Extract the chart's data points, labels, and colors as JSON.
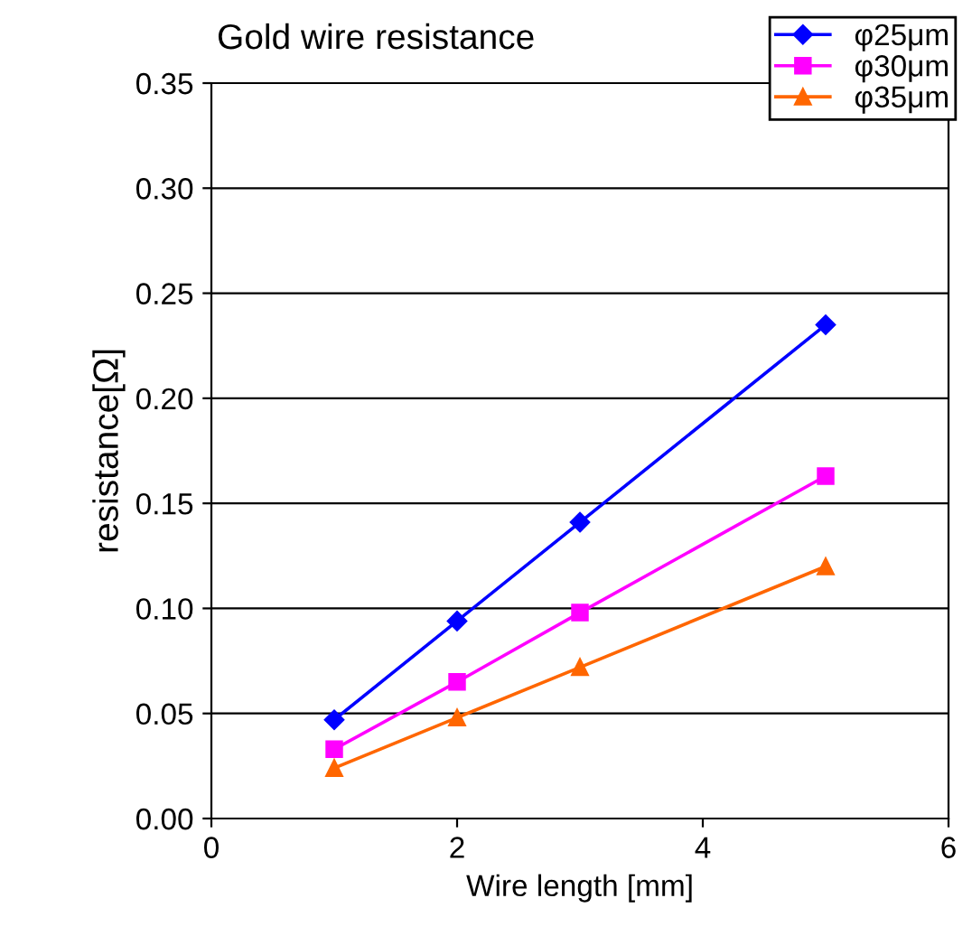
{
  "chart_data": {
    "type": "line",
    "title": "Gold wire resistance",
    "xlabel": "Wire length [mm]",
    "ylabel": "resistance[Ω]",
    "x": [
      1,
      2,
      3,
      5
    ],
    "series": [
      {
        "name": "φ25μm",
        "color": "#0000ff",
        "marker": "diamond",
        "values": [
          0.047,
          0.094,
          0.141,
          0.235
        ]
      },
      {
        "name": "φ30μm",
        "color": "#ff00ff",
        "marker": "square",
        "values": [
          0.033,
          0.065,
          0.098,
          0.163
        ]
      },
      {
        "name": "φ35μm",
        "color": "#ff6600",
        "marker": "triangle",
        "values": [
          0.024,
          0.048,
          0.072,
          0.12
        ]
      }
    ],
    "xlim": [
      0,
      6
    ],
    "xticks": [
      0,
      2,
      4,
      6
    ],
    "ylim": [
      0,
      0.35
    ],
    "yticks": [
      {
        "value": 0,
        "label": "0.00"
      },
      {
        "value": 0.05,
        "label": "0.05"
      },
      {
        "value": 0.1,
        "label": "0.10"
      },
      {
        "value": 0.15,
        "label": "0.15"
      },
      {
        "value": 0.2,
        "label": "0.20"
      },
      {
        "value": 0.25,
        "label": "0.25"
      },
      {
        "value": 0.3,
        "label": "0.30"
      },
      {
        "value": 0.35,
        "label": "0.35"
      }
    ],
    "grid": "y",
    "legend": "top right",
    "line_style": "solid"
  }
}
